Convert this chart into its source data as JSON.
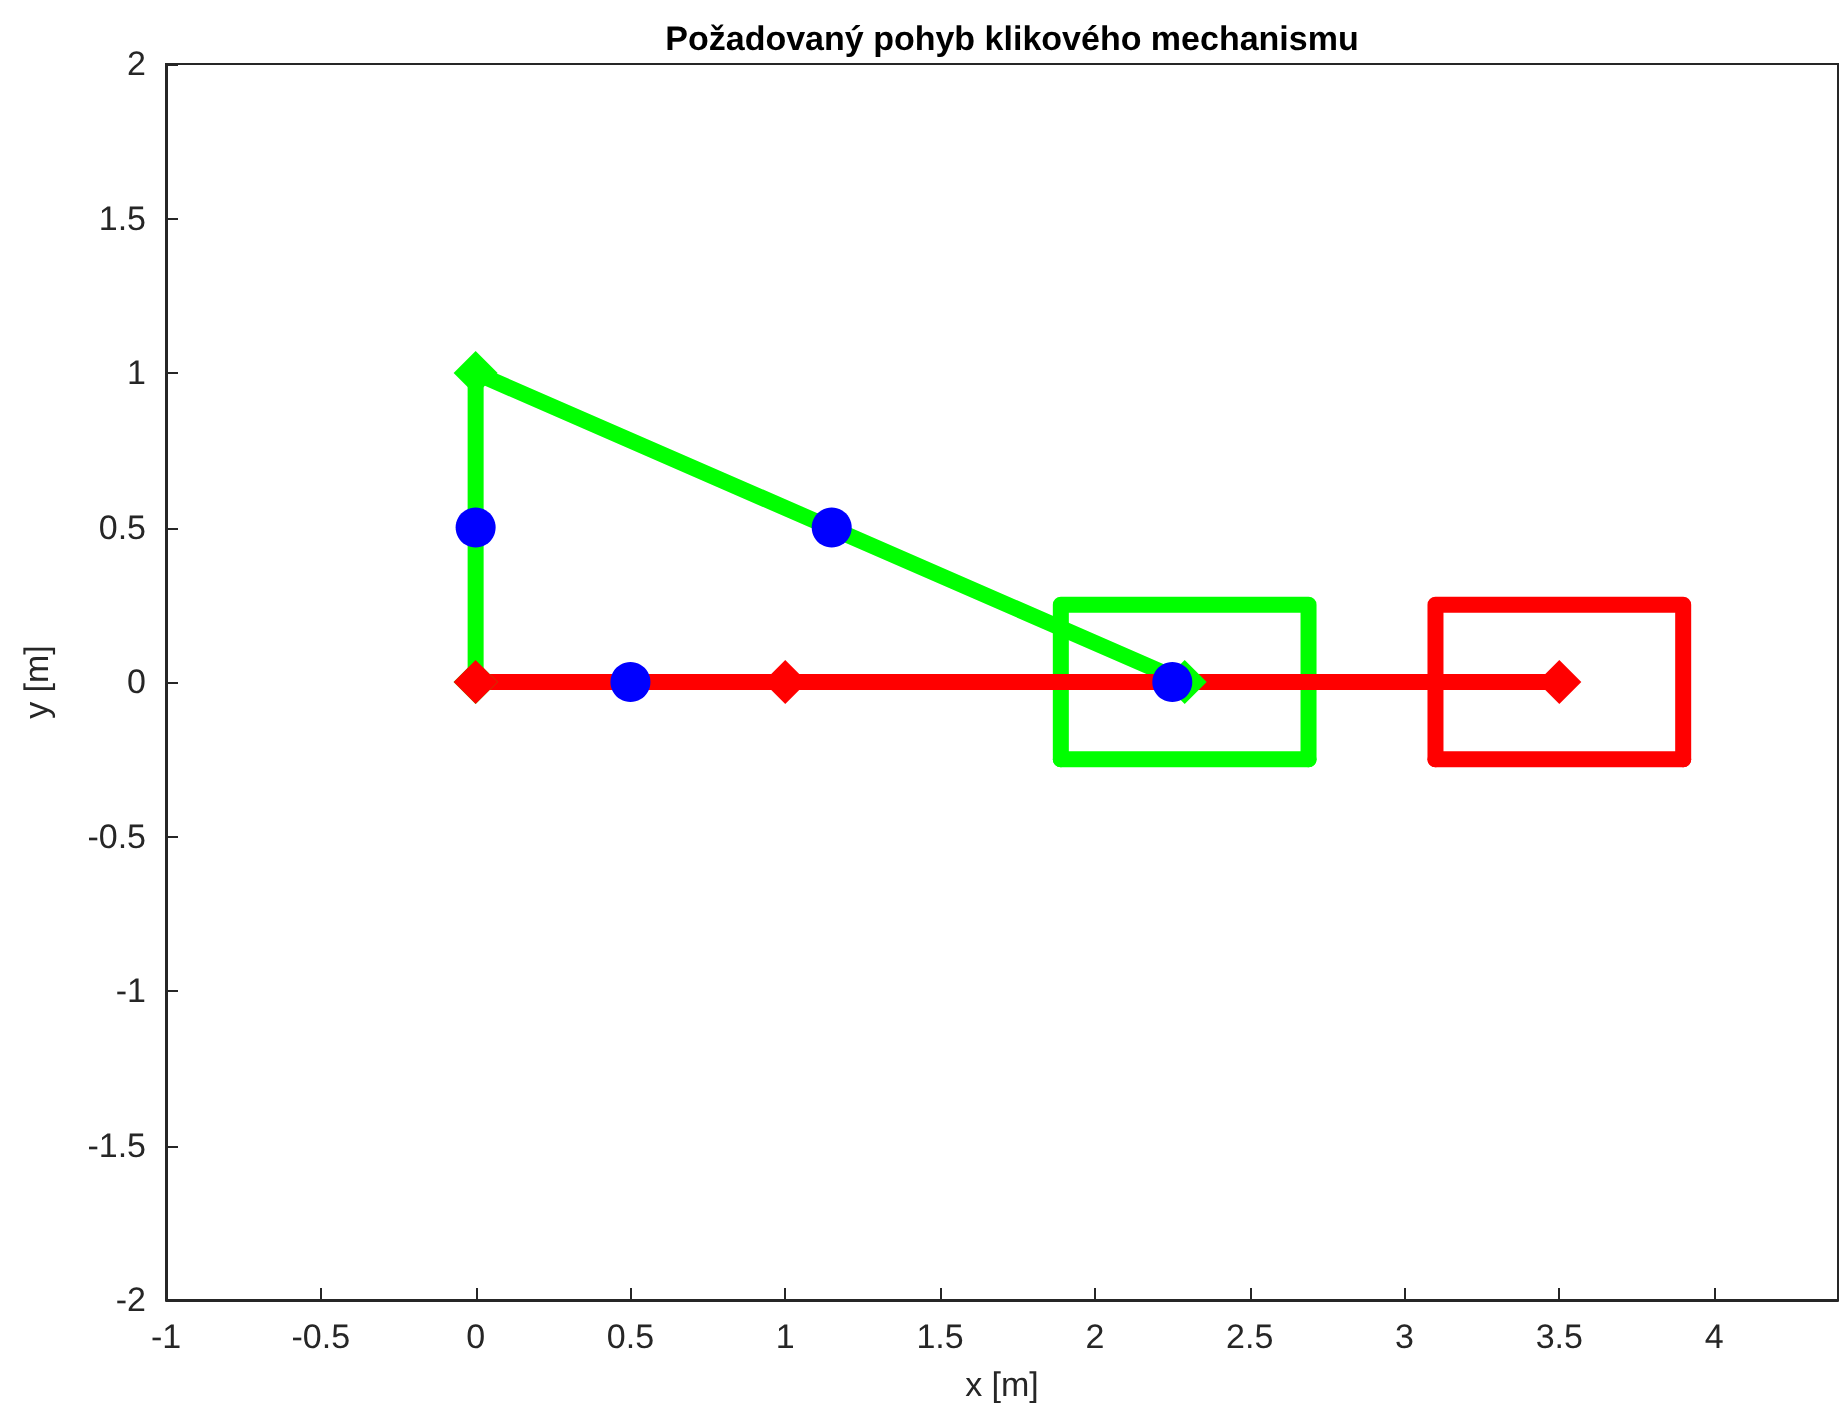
{
  "chart_data": {
    "type": "line",
    "title": "Požadovaný pohyb klikového mechanismu",
    "xlabel": "x [m]",
    "ylabel": "y [m]",
    "xlim": [
      -1,
      4.4
    ],
    "xticks": [
      -1,
      -0.5,
      0,
      0.5,
      1,
      1.5,
      2,
      2.5,
      3,
      3.5,
      4
    ],
    "ylim": [
      -2,
      2
    ],
    "yticks": [
      -2,
      -1.5,
      -1,
      -0.5,
      0,
      0.5,
      1,
      1.5,
      2
    ],
    "series": [
      {
        "type": "line",
        "color": "#00ff00",
        "marker": "diamond",
        "x": [
          0,
          0,
          2.29
        ],
        "values": [
          0,
          1,
          0
        ]
      },
      {
        "type": "line",
        "color": "#00ff00",
        "marker": "none",
        "x": [
          1.89,
          1.89,
          2.69,
          2.69
        ],
        "values": [
          -0.25,
          0.25,
          0.25,
          -0.25
        ]
      },
      {
        "type": "line",
        "color": "#00ff00",
        "marker": "none",
        "x": [
          1.89,
          2.69
        ],
        "values": [
          -0.25,
          -0.25
        ]
      },
      {
        "type": "line",
        "color": "#ff0000",
        "marker": "diamond",
        "x": [
          0,
          1,
          3.5
        ],
        "values": [
          0,
          0,
          0
        ]
      },
      {
        "type": "line",
        "color": "#ff0000",
        "marker": "none",
        "x": [
          3.1,
          3.1,
          3.9,
          3.9
        ],
        "values": [
          -0.25,
          0.25,
          0.25,
          -0.25
        ]
      },
      {
        "type": "line",
        "color": "#ff0000",
        "marker": "none",
        "x": [
          3.1,
          3.9
        ],
        "values": [
          -0.25,
          -0.25
        ]
      },
      {
        "type": "scatter",
        "color": "#0000ff",
        "marker": "circle",
        "x": [
          0,
          0.5,
          1.15,
          2.25
        ],
        "values": [
          0.5,
          0,
          0.5,
          0
        ]
      }
    ]
  }
}
